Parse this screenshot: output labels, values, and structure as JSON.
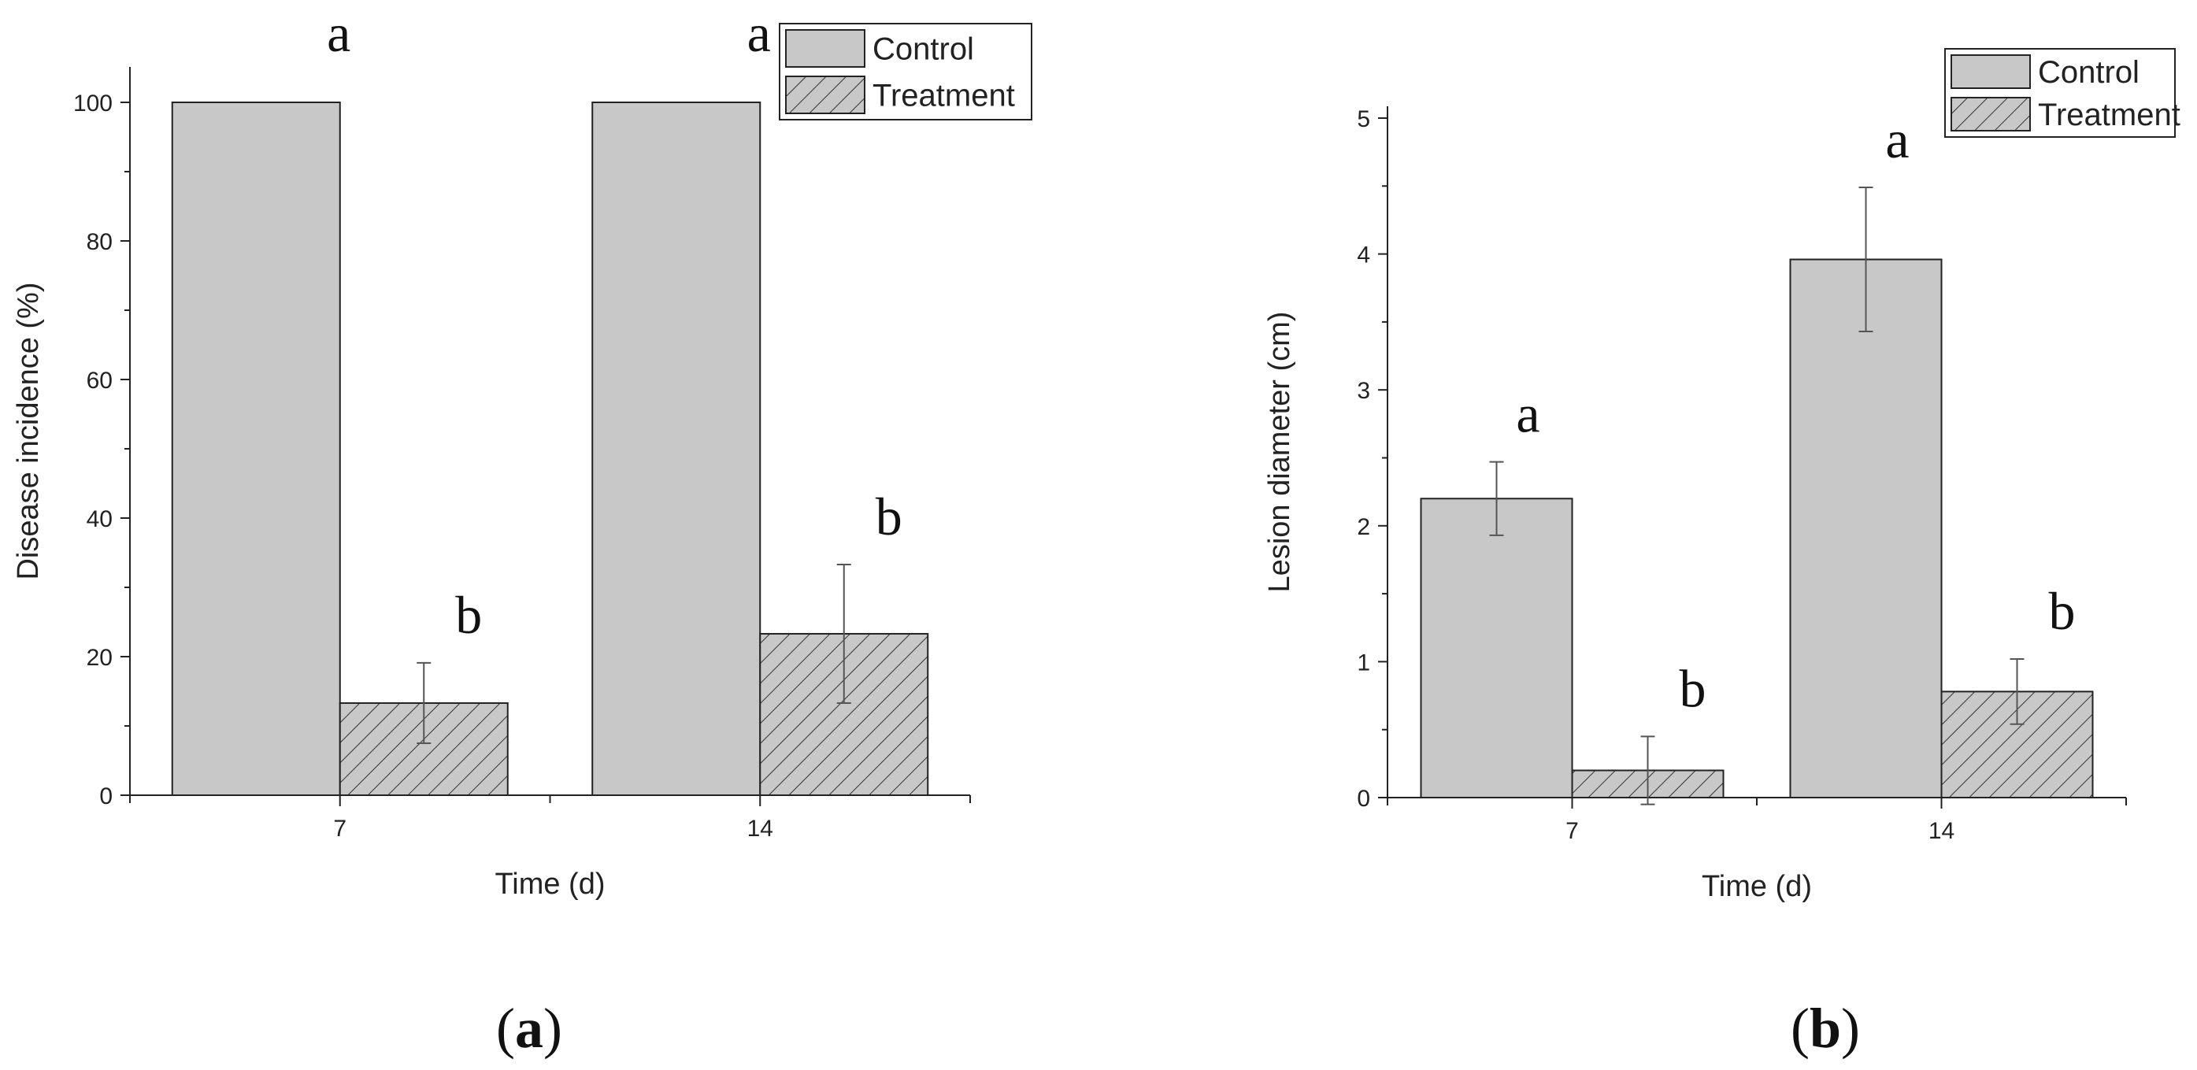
{
  "chart_data": [
    {
      "type": "bar",
      "panel_label": "a",
      "categories": [
        "7",
        "14"
      ],
      "series": [
        {
          "name": "Control",
          "values": [
            100,
            100
          ],
          "errors": [
            0,
            0
          ],
          "pattern": "solid",
          "color": "#c8c8c8"
        },
        {
          "name": "Treatment",
          "values": [
            13.3,
            23.3
          ],
          "errors": [
            5.8,
            10.0
          ],
          "pattern": "hatch",
          "color": "#c8c8c8"
        }
      ],
      "significance": [
        [
          "a",
          "b"
        ],
        [
          "a",
          "b"
        ]
      ],
      "xlabel": "Time (d)",
      "ylabel": "Disease incidence (%)",
      "ylim": [
        0,
        100
      ],
      "yticks": [
        "0",
        "20",
        "40",
        "60",
        "80",
        "100"
      ],
      "legend_placement": "top-right"
    },
    {
      "type": "bar",
      "panel_label": "b",
      "categories": [
        "7",
        "14"
      ],
      "series": [
        {
          "name": "Control",
          "values": [
            2.2,
            3.96
          ],
          "errors": [
            0.27,
            0.53
          ],
          "pattern": "solid",
          "color": "#c8c8c8"
        },
        {
          "name": "Treatment",
          "values": [
            0.2,
            0.78
          ],
          "errors": [
            0.25,
            0.24
          ],
          "pattern": "hatch",
          "color": "#c8c8c8"
        }
      ],
      "significance": [
        [
          "a",
          "b"
        ],
        [
          "a",
          "b"
        ]
      ],
      "xlabel": "Time (d)",
      "ylabel": "Lesion diameter (cm)",
      "ylim": [
        0,
        5
      ],
      "yticks": [
        "0",
        "1",
        "2",
        "3",
        "4",
        "5"
      ],
      "legend_placement": "top-right"
    }
  ]
}
